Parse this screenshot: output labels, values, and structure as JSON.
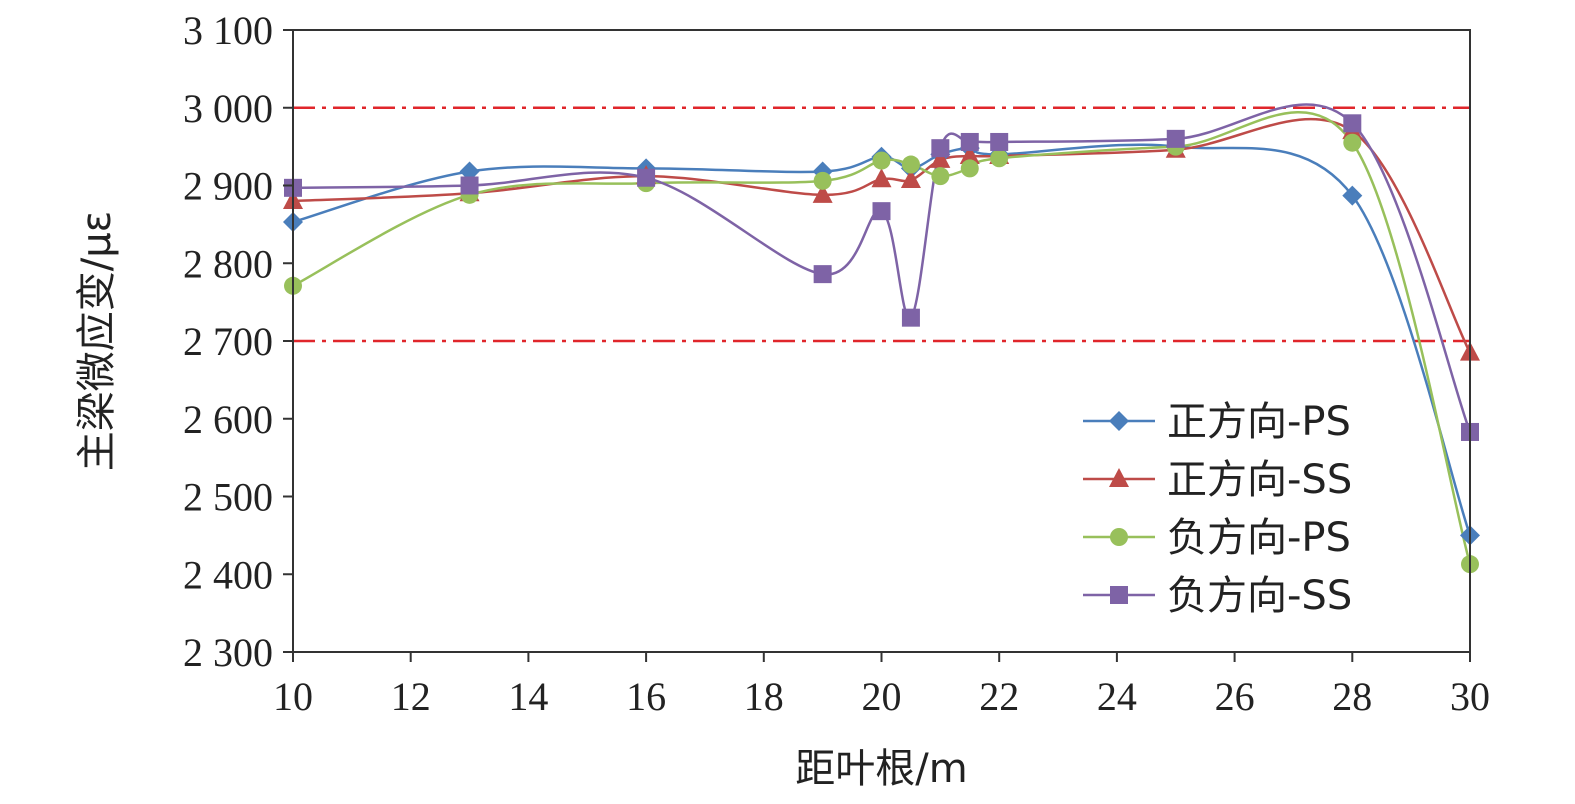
{
  "chart_data": {
    "type": "line",
    "xlabel": "距叶根/m",
    "ylabel": "主梁微应变/με",
    "xlim": [
      10,
      30
    ],
    "ylim": [
      2300,
      3100
    ],
    "x_ticks": [
      10,
      12,
      14,
      16,
      18,
      20,
      22,
      24,
      26,
      28,
      30
    ],
    "y_ticks": [
      2300,
      2400,
      2500,
      2600,
      2700,
      2800,
      2900,
      3000,
      3100
    ],
    "y_tick_labels": [
      "2 300",
      "2 400",
      "2 500",
      "2 600",
      "2 700",
      "2 800",
      "2 900",
      "3 000",
      "3 100"
    ],
    "grid": false,
    "legend_position": "bottom-right",
    "reference_lines": [
      {
        "y": 3000,
        "color": "#e0262b",
        "style": "dash-dot"
      },
      {
        "y": 2700,
        "color": "#e0262b",
        "style": "dash-dot"
      }
    ],
    "series": [
      {
        "name": "正方向-PS",
        "color": "#4a7ebb",
        "marker": "diamond",
        "x": [
          10,
          13,
          16,
          19,
          20,
          20.5,
          21,
          21.5,
          22,
          25,
          28,
          30
        ],
        "values": [
          2853,
          2918,
          2922,
          2918,
          2937,
          2922,
          2940,
          2948,
          2940,
          2950,
          2887,
          2450
        ]
      },
      {
        "name": "正方向-SS",
        "color": "#be4b48",
        "marker": "triangle",
        "x": [
          10,
          13,
          16,
          19,
          20,
          20.5,
          21,
          21.5,
          22,
          25,
          28,
          30
        ],
        "values": [
          2880,
          2890,
          2912,
          2888,
          2908,
          2907,
          2933,
          2938,
          2938,
          2946,
          2970,
          2685
        ]
      },
      {
        "name": "负方向-PS",
        "color": "#98c05b",
        "marker": "circle",
        "x": [
          10,
          13,
          16,
          19,
          20,
          20.5,
          21,
          21.5,
          22,
          25,
          28,
          30
        ],
        "values": [
          2771,
          2888,
          2903,
          2906,
          2932,
          2927,
          2912,
          2922,
          2935,
          2950,
          2955,
          2413
        ]
      },
      {
        "name": "负方向-SS",
        "color": "#7e63a6",
        "marker": "square",
        "x": [
          10,
          13,
          16,
          19,
          20,
          20.5,
          21,
          21.5,
          22,
          25,
          28,
          30
        ],
        "values": [
          2897,
          2900,
          2910,
          2786,
          2867,
          2730,
          2948,
          2956,
          2956,
          2960,
          2980,
          2583
        ]
      }
    ]
  }
}
